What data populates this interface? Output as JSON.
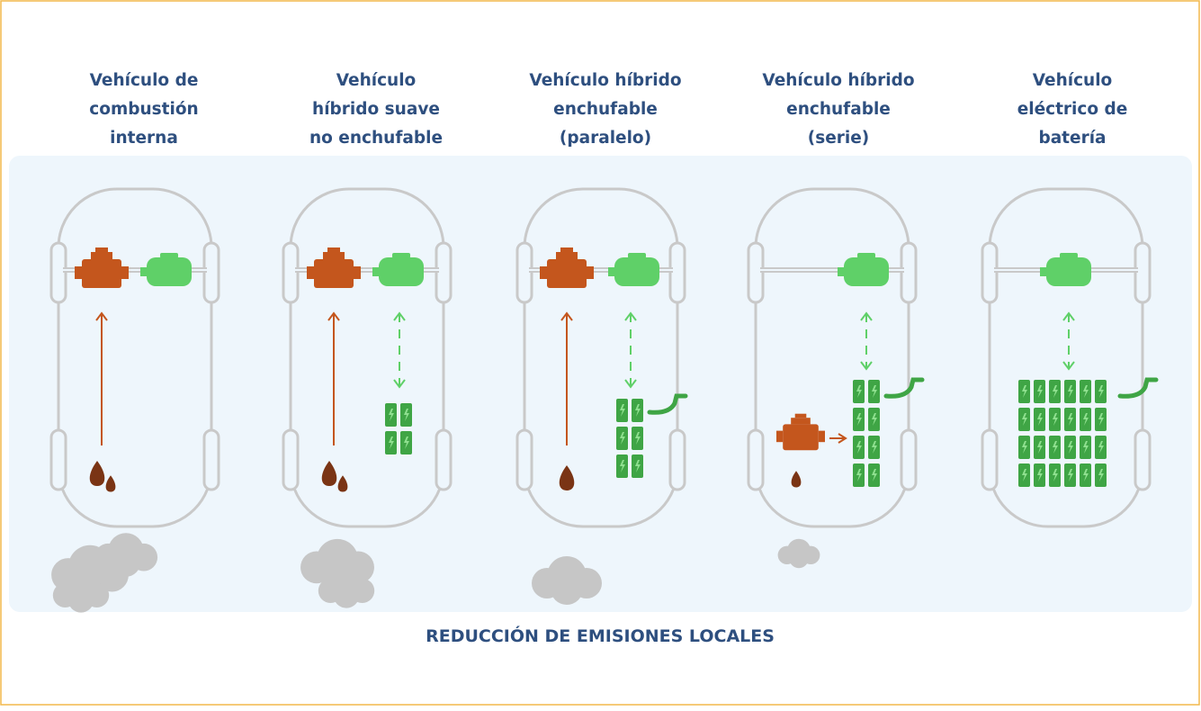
{
  "columns": [
    {
      "title": [
        "Vehículo de",
        "combustión",
        "interna"
      ]
    },
    {
      "title": [
        "Vehículo",
        "híbrido suave",
        "no enchufable"
      ]
    },
    {
      "title": [
        "Vehículo híbrido",
        "enchufable",
        "(paralelo)"
      ]
    },
    {
      "title": [
        "Vehículo híbrido",
        "enchufable",
        "(serie)"
      ]
    },
    {
      "title": [
        "Vehículo",
        "eléctrico de",
        "batería"
      ]
    }
  ],
  "footer": {
    "label": "REDUCCIÓN DE EMISIONES LOCALES"
  }
}
